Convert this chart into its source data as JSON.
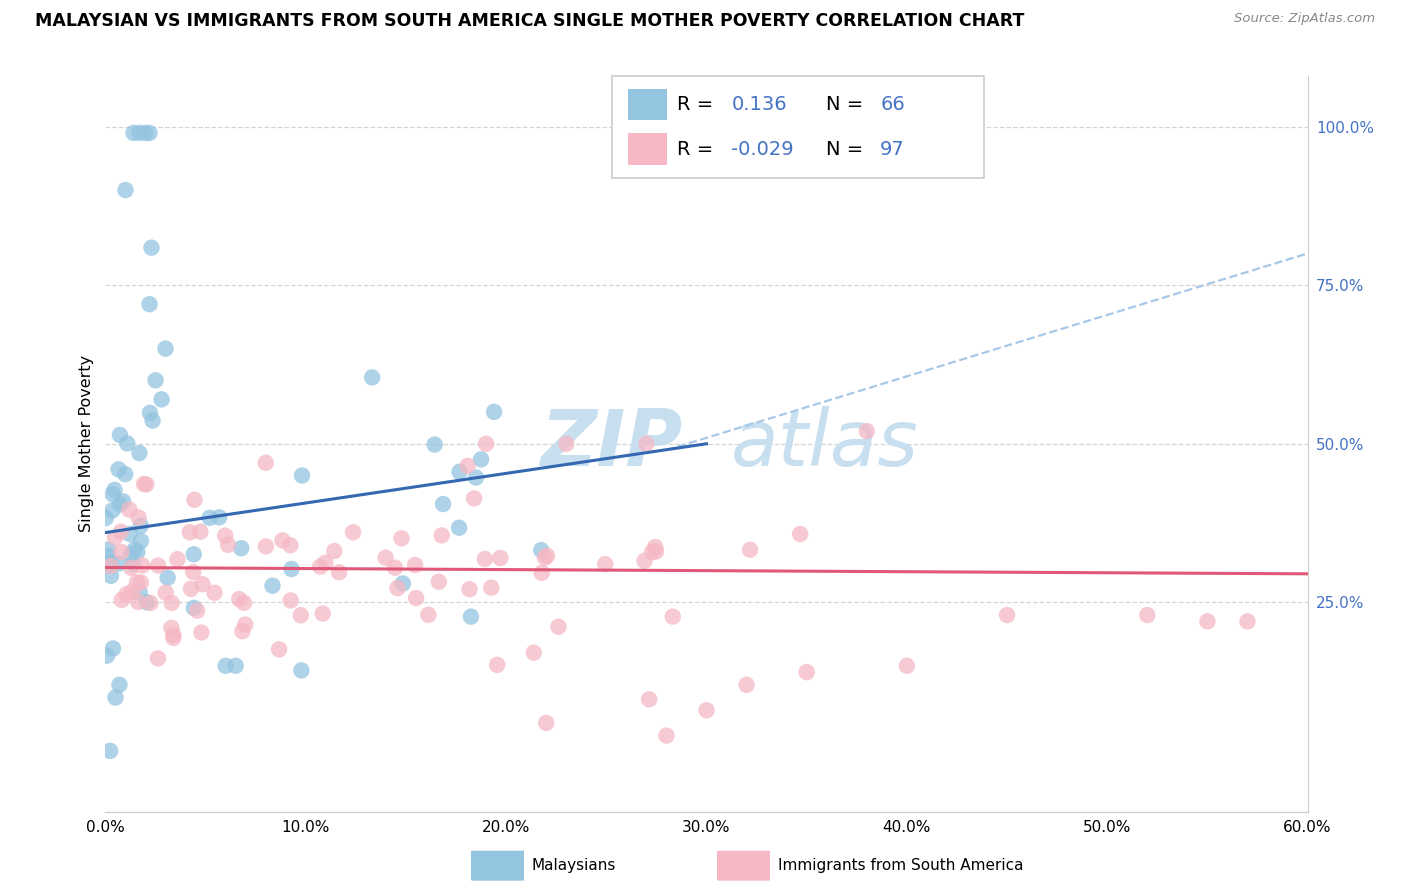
{
  "title": "MALAYSIAN VS IMMIGRANTS FROM SOUTH AMERICA SINGLE MOTHER POVERTY CORRELATION CHART",
  "source": "Source: ZipAtlas.com",
  "ylabel": "Single Mother Poverty",
  "watermark_line1": "ZIP",
  "watermark_line2": "atlas",
  "watermark_color": "#c8dff0",
  "blue_scatter_color": "#93c4e0",
  "pink_scatter_color": "#f5b8c4",
  "blue_line_color": "#3468b0",
  "pink_line_color": "#e05878",
  "dashed_line_color": "#a8c8e8",
  "right_tick_color": "#4472c4",
  "xmin": 0.0,
  "xmax": 0.6,
  "ymin": -0.08,
  "ymax": 1.08,
  "ytick_positions": [
    0.0,
    0.25,
    0.5,
    0.75,
    1.0
  ],
  "ytick_labels": [
    "",
    "25.0%",
    "50.0%",
    "75.0%",
    "100.0%"
  ],
  "xtick_positions": [
    0.0,
    0.1,
    0.2,
    0.3,
    0.4,
    0.5,
    0.6
  ],
  "blue_line_x0": 0.0,
  "blue_line_y0": 0.36,
  "blue_line_x1": 0.3,
  "blue_line_y1": 0.5,
  "dashed_line_x0": 0.28,
  "dashed_line_y0": 0.49,
  "dashed_line_x1": 0.6,
  "dashed_line_y1": 0.8,
  "pink_line_x0": 0.0,
  "pink_line_y0": 0.305,
  "pink_line_x1": 0.6,
  "pink_line_y1": 0.295
}
